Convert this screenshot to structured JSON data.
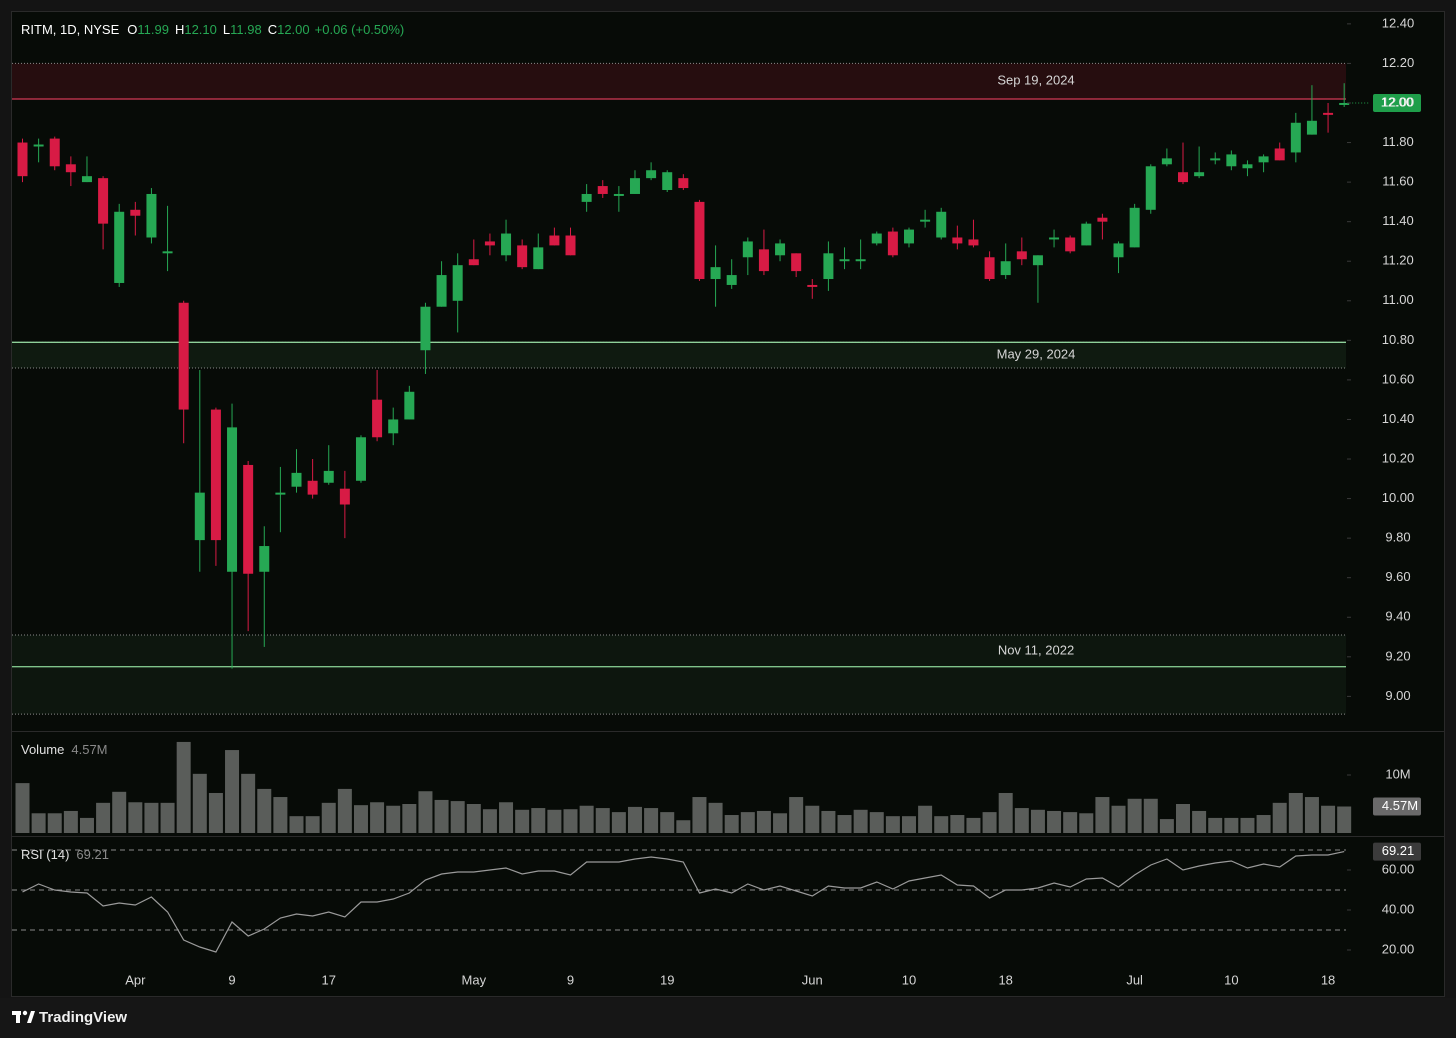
{
  "chart_data": [
    {
      "type": "candlestick",
      "title": "RITM, 1D, NYSE",
      "readout": [
        {
          "key": "O",
          "value": "11.99"
        },
        {
          "key": "H",
          "value": "12.10"
        },
        {
          "key": "L",
          "value": "11.98"
        },
        {
          "key": "C",
          "value": "12.00"
        }
      ],
      "change": "+0.06 (+0.50%)",
      "up_color": "#26a854",
      "down_color": "#d81b45",
      "categories": [
        null,
        null,
        null,
        null,
        null,
        null,
        null,
        "Apr",
        null,
        null,
        null,
        null,
        null,
        "9",
        null,
        null,
        null,
        null,
        null,
        "17",
        null,
        null,
        null,
        null,
        null,
        null,
        null,
        null,
        "May",
        null,
        null,
        null,
        null,
        null,
        "9",
        null,
        null,
        null,
        null,
        null,
        "19",
        null,
        null,
        null,
        null,
        null,
        null,
        null,
        null,
        "Jun",
        null,
        null,
        null,
        null,
        null,
        "10",
        null,
        null,
        null,
        null,
        null,
        "18",
        null,
        null,
        null,
        null,
        null,
        null,
        null,
        "Jul",
        null,
        null,
        null,
        null,
        null,
        "10",
        null,
        null,
        null,
        null,
        null,
        "18",
        null
      ],
      "open": [
        11.8,
        11.78,
        11.82,
        11.69,
        11.6,
        11.62,
        11.09,
        11.46,
        11.32,
        11.24,
        10.99,
        9.79,
        10.45,
        9.63,
        10.17,
        9.63,
        10.02,
        10.06,
        10.09,
        10.08,
        10.05,
        10.09,
        10.5,
        10.33,
        10.4,
        10.75,
        10.97,
        11.0,
        11.21,
        11.3,
        11.23,
        11.28,
        11.16,
        11.33,
        11.33,
        11.5,
        11.58,
        11.53,
        11.54,
        11.62,
        11.56,
        11.62,
        11.5,
        11.11,
        11.08,
        11.22,
        11.26,
        11.23,
        11.24,
        11.08,
        11.11,
        11.2,
        11.2,
        11.29,
        11.35,
        11.29,
        11.4,
        11.32,
        11.32,
        11.31,
        11.22,
        11.13,
        11.25,
        11.18,
        11.31,
        11.32,
        11.28,
        11.42,
        11.22,
        11.27,
        11.46,
        11.69,
        11.65,
        11.63,
        11.71,
        11.68,
        11.67,
        11.7,
        11.77,
        11.75,
        11.84,
        11.95,
        11.99
      ],
      "high": [
        11.82,
        11.82,
        11.83,
        11.73,
        11.73,
        11.63,
        11.49,
        11.5,
        11.57,
        11.48,
        11.0,
        10.65,
        10.46,
        10.48,
        10.19,
        9.86,
        10.16,
        10.25,
        10.2,
        10.27,
        10.14,
        10.32,
        10.65,
        10.46,
        10.57,
        10.99,
        11.2,
        11.24,
        11.31,
        11.34,
        11.41,
        11.31,
        11.34,
        11.37,
        11.37,
        11.59,
        11.61,
        11.58,
        11.66,
        11.7,
        11.66,
        11.64,
        11.51,
        11.28,
        11.21,
        11.32,
        11.36,
        11.31,
        11.24,
        11.11,
        11.3,
        11.27,
        11.31,
        11.35,
        11.37,
        11.37,
        11.46,
        11.47,
        11.38,
        11.41,
        11.25,
        11.29,
        11.32,
        11.23,
        11.36,
        11.33,
        11.4,
        11.44,
        11.3,
        11.49,
        11.69,
        11.77,
        11.8,
        11.78,
        11.75,
        11.76,
        11.71,
        11.74,
        11.8,
        11.95,
        12.09,
        12.0,
        12.1
      ],
      "low": [
        11.6,
        11.7,
        11.66,
        11.58,
        11.6,
        11.26,
        11.07,
        11.33,
        11.29,
        11.15,
        10.28,
        9.63,
        9.66,
        9.14,
        9.33,
        9.25,
        9.83,
        10.03,
        10.0,
        10.07,
        9.8,
        10.08,
        10.29,
        10.27,
        10.4,
        10.63,
        10.97,
        10.84,
        11.18,
        11.23,
        11.2,
        11.16,
        11.16,
        11.28,
        11.23,
        11.45,
        11.52,
        11.45,
        11.54,
        11.61,
        11.55,
        11.56,
        11.1,
        10.97,
        11.06,
        11.13,
        11.13,
        11.2,
        11.12,
        11.01,
        11.05,
        11.16,
        11.16,
        11.28,
        11.22,
        11.27,
        11.37,
        11.31,
        11.26,
        11.27,
        11.1,
        11.11,
        11.18,
        10.99,
        11.27,
        11.24,
        11.28,
        11.31,
        11.14,
        11.27,
        11.44,
        11.68,
        11.59,
        11.62,
        11.69,
        11.66,
        11.63,
        11.65,
        11.71,
        11.7,
        11.84,
        11.85,
        11.98
      ],
      "close": [
        11.63,
        11.79,
        11.68,
        11.65,
        11.63,
        11.39,
        11.45,
        11.43,
        11.54,
        11.25,
        10.45,
        10.03,
        9.79,
        10.36,
        9.62,
        9.76,
        10.03,
        10.13,
        10.02,
        10.14,
        9.97,
        10.31,
        10.31,
        10.4,
        10.54,
        10.97,
        11.13,
        11.18,
        11.18,
        11.28,
        11.34,
        11.17,
        11.27,
        11.28,
        11.23,
        11.54,
        11.54,
        11.54,
        11.62,
        11.66,
        11.65,
        11.57,
        11.11,
        11.17,
        11.13,
        11.3,
        11.15,
        11.29,
        11.15,
        11.07,
        11.24,
        11.21,
        11.21,
        11.34,
        11.23,
        11.36,
        11.41,
        11.45,
        11.29,
        11.28,
        11.11,
        11.2,
        11.21,
        11.23,
        11.32,
        11.25,
        11.39,
        11.4,
        11.29,
        11.47,
        11.68,
        11.72,
        11.6,
        11.65,
        11.72,
        11.74,
        11.69,
        11.73,
        11.71,
        11.9,
        11.91,
        11.94,
        12.0
      ],
      "last_price": {
        "value": 12.0,
        "label": "12.00",
        "color": "#1f9e4a"
      },
      "zones": [
        {
          "label": "Sep 19, 2024",
          "top": 12.2,
          "bottom": 12.02,
          "line": 12.02,
          "line_color": "#d23a56",
          "fill": "rgba(120,20,35,0.28)"
        },
        {
          "label": "May 29, 2024",
          "top": 10.79,
          "bottom": 10.66,
          "line": 10.79,
          "line_color": "#8fd19a",
          "fill": "rgba(70,130,80,0.13)"
        },
        {
          "label": "Nov 11, 2022",
          "top": 9.31,
          "bottom": 8.91,
          "line": 9.15,
          "line_color": "#7fc38a",
          "fill": "rgba(70,130,80,0.10)"
        }
      ],
      "ylim": [
        8.83,
        12.46
      ],
      "yticks": [
        {
          "value": 12.4,
          "label": "12.40"
        },
        {
          "value": 12.2,
          "label": "12.20"
        },
        {
          "value": 12.0,
          "label": "12.00"
        },
        {
          "value": 11.8,
          "label": "11.80"
        },
        {
          "value": 11.6,
          "label": "11.60"
        },
        {
          "value": 11.4,
          "label": "11.40"
        },
        {
          "value": 11.2,
          "label": "11.20"
        },
        {
          "value": 11.0,
          "label": "11.00"
        },
        {
          "value": 10.8,
          "label": "10.80"
        },
        {
          "value": 10.6,
          "label": "10.60"
        },
        {
          "value": 10.4,
          "label": "10.40"
        },
        {
          "value": 10.2,
          "label": "10.20"
        },
        {
          "value": 10.0,
          "label": "10.00"
        },
        {
          "value": 9.8,
          "label": "9.80"
        },
        {
          "value": 9.6,
          "label": "9.60"
        },
        {
          "value": 9.4,
          "label": "9.40"
        },
        {
          "value": 9.2,
          "label": "9.20"
        },
        {
          "value": 9.0,
          "label": "9.00"
        }
      ]
    },
    {
      "type": "bar",
      "name": "Volume",
      "color": "#5a5d5a",
      "values": [
        8.6,
        3.4,
        3.4,
        3.8,
        2.6,
        5.2,
        7.1,
        5.3,
        5.2,
        5.2,
        15.7,
        10.2,
        6.9,
        14.3,
        10.2,
        7.6,
        6.2,
        2.9,
        2.9,
        5.2,
        7.6,
        4.8,
        5.3,
        4.7,
        5.0,
        7.2,
        5.7,
        5.5,
        5.0,
        4.1,
        5.3,
        4.0,
        4.3,
        4.0,
        4.1,
        4.7,
        4.3,
        3.6,
        4.5,
        4.3,
        3.6,
        2.2,
        6.2,
        5.2,
        3.1,
        3.6,
        3.8,
        3.4,
        6.2,
        4.7,
        3.8,
        3.1,
        4.0,
        3.6,
        2.9,
        2.9,
        4.7,
        2.9,
        3.1,
        2.6,
        3.6,
        6.9,
        4.3,
        4.0,
        3.8,
        3.6,
        3.4,
        6.2,
        4.7,
        5.9,
        5.9,
        2.4,
        5.0,
        3.8,
        2.6,
        2.6,
        2.6,
        3.1,
        5.2,
        6.9,
        6.2,
        4.7,
        4.57
      ],
      "value_labels": {
        "82": "4.57M"
      },
      "ylim": [
        0,
        17.24
      ],
      "yticks": [
        {
          "value": 10,
          "label": "10M"
        }
      ]
    },
    {
      "type": "line",
      "name": "RSI (14)",
      "color": "#9a9a9a",
      "values": [
        49,
        53,
        50,
        49,
        48.5,
        42,
        43.5,
        42.5,
        46.5,
        39,
        25,
        21.5,
        19,
        34,
        27,
        30.5,
        36,
        38,
        37,
        39,
        36.5,
        44,
        44,
        45.5,
        48.5,
        55,
        58,
        59,
        59,
        60,
        61,
        58,
        59.5,
        59.5,
        57.5,
        64,
        64,
        64,
        65.5,
        66.5,
        65.5,
        64,
        48.5,
        50.5,
        48.5,
        53,
        50,
        52,
        49.5,
        47,
        52,
        51,
        51,
        54,
        50.5,
        54.5,
        56,
        57.5,
        52.5,
        52,
        46,
        50,
        50,
        51,
        53.5,
        51.5,
        55.5,
        56,
        51.5,
        57.5,
        62.5,
        65.5,
        60,
        62,
        63.5,
        64.5,
        61,
        63,
        61.5,
        67,
        67.5,
        67.5,
        69.21
      ],
      "levels": [
        70,
        50,
        30
      ],
      "ylim": [
        11,
        76
      ],
      "yticks": [
        {
          "value": 60,
          "label": "60.00"
        },
        {
          "value": 40,
          "label": "40.00"
        },
        {
          "value": 20,
          "label": "20.00"
        }
      ]
    }
  ],
  "footer": {
    "brand": "TradingView"
  }
}
